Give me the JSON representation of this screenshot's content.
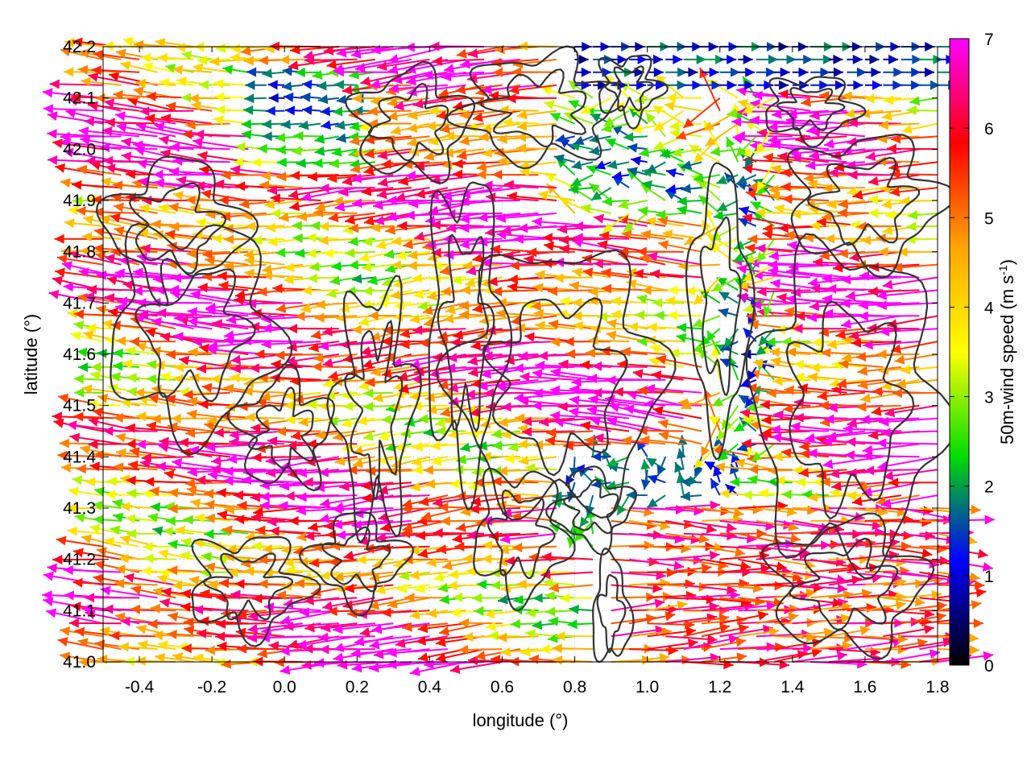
{
  "chart_data": {
    "type": "vector-field",
    "title": "",
    "xlabel": "longitude (°)",
    "ylabel": "latitude (°)",
    "colorbar_label": "50m-wind speed (m s-1)",
    "colorbar_label_parts": {
      "main": "50m-wind speed (m s",
      "sup": "-1",
      "close": ")"
    },
    "xlim": [
      -0.5,
      1.8
    ],
    "ylim": [
      41.0,
      42.2
    ],
    "xticks": [
      -0.4,
      -0.2,
      0.0,
      0.2,
      0.4,
      0.6,
      0.8,
      1.0,
      1.2,
      1.4,
      1.6,
      1.8
    ],
    "xtick_labels": [
      "-0.4",
      "-0.2",
      "0.0",
      "0.2",
      "0.4",
      "0.6",
      "0.8",
      "1.0",
      "1.2",
      "1.4",
      "1.6",
      "1.8"
    ],
    "yticks": [
      41.0,
      41.1,
      41.2,
      41.3,
      41.4,
      41.5,
      41.6,
      41.7,
      41.8,
      41.9,
      42.0,
      42.1,
      42.2
    ],
    "ytick_labels": [
      "41.0",
      "41.1",
      "41.2",
      "41.3",
      "41.4",
      "41.5",
      "41.6",
      "41.7",
      "41.8",
      "41.9",
      "42.0",
      "42.1",
      "42.2"
    ],
    "colorbar_range": [
      0,
      7
    ],
    "colorbar_ticks": [
      0,
      1,
      2,
      3,
      4,
      5,
      6,
      7
    ],
    "colorbar_tick_labels": [
      "0",
      "1",
      "2",
      "3",
      "4",
      "5",
      "6",
      "7"
    ],
    "colorbar_colors": [
      "#000000",
      "#0000ff",
      "#00dd00",
      "#ffff00",
      "#ffa500",
      "#ff0000",
      "#ff00ff"
    ],
    "contour_color": "#333333",
    "grid": true,
    "grid_style": "dotted",
    "vector_field_description": "Easterly flow over most of the domain (arrows pointing west) with speeds of 4-7 m/s; weak, variable winds (1-3 m/s) near 1.0-1.3 lon, 41.2-41.4 lat and along 1.3 lon; westerly flow in the southeast corner (lat 41.0-41.3, lon 0.9-1.8) and along the northern edge east of 0.8 lon.",
    "flow_regimes": [
      {
        "region": "main",
        "direction": "from east",
        "speed_range": [
          4,
          7
        ]
      },
      {
        "region": "central calm band near lon 1.3",
        "direction": "variable",
        "speed_range": [
          1,
          3
        ]
      },
      {
        "region": "southeast corner",
        "direction": "from west",
        "speed_range": [
          4,
          7
        ]
      },
      {
        "region": "northern edge east of 0.8",
        "direction": "from west",
        "speed_range": [
          0.5,
          2
        ]
      }
    ]
  }
}
